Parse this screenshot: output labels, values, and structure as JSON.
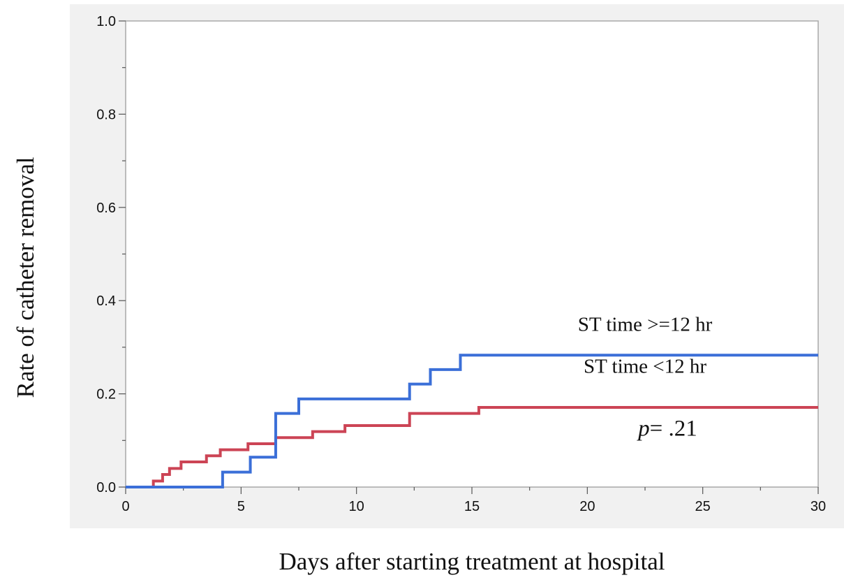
{
  "chart_data": {
    "type": "line",
    "step": true,
    "title": "",
    "xlabel": "Days after starting treatment at hospital",
    "ylabel": "Rate of catheter removal",
    "xlim": [
      0,
      30
    ],
    "ylim": [
      0,
      1.0
    ],
    "x_ticks": [
      "0",
      "5",
      "10",
      "15",
      "20",
      "25",
      "30"
    ],
    "x_tick_values": [
      0,
      5,
      10,
      15,
      20,
      25,
      30
    ],
    "y_ticks": [
      "0.0",
      "0.2",
      "0.4",
      "0.6",
      "0.8",
      "1.0"
    ],
    "y_tick_values": [
      0,
      0.2,
      0.4,
      0.6,
      0.8,
      1.0
    ],
    "grid": false,
    "series": [
      {
        "name": "ST time >=12 hr",
        "color": "#3b6fd8",
        "x": [
          0,
          4.2,
          5.4,
          6.5,
          7.5,
          12.3,
          13.2,
          14.5,
          30
        ],
        "y": [
          0,
          0.032,
          0.064,
          0.158,
          0.189,
          0.221,
          0.252,
          0.283,
          0.283
        ]
      },
      {
        "name": "ST time <12 hr",
        "color": "#cc4455",
        "x": [
          0,
          1.2,
          1.6,
          1.9,
          2.4,
          3.5,
          4.1,
          5.3,
          6.5,
          8.1,
          9.5,
          12.3,
          15.3,
          30
        ],
        "y": [
          0,
          0.013,
          0.027,
          0.04,
          0.054,
          0.067,
          0.08,
          0.093,
          0.106,
          0.119,
          0.132,
          0.158,
          0.171,
          0.171
        ]
      }
    ],
    "annotations": [
      {
        "text": "ST time >=12 hr",
        "x": 22.5,
        "y": 0.335
      },
      {
        "text": "ST time <12 hr",
        "x": 22.5,
        "y": 0.245
      },
      {
        "prefix": "p",
        "text": "= .21",
        "x": 22.2,
        "y": 0.11
      }
    ]
  }
}
